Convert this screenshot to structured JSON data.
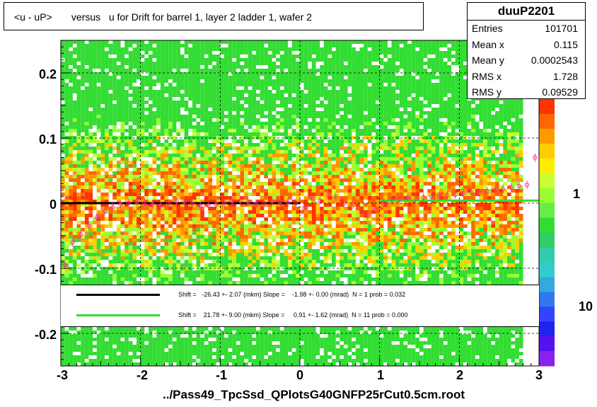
{
  "title": "<u - uP>       versus   u for Drift for barrel 1, layer 2 ladder 1, wafer 2",
  "footer": "../Pass49_TpcSsd_QPlotsG40GNFP25rCut0.5cm.root",
  "stats": {
    "name": "duuP2201",
    "rows": [
      {
        "label": "Entries",
        "value": "101701"
      },
      {
        "label": "Mean x",
        "value": "0.115"
      },
      {
        "label": "Mean y",
        "value": "0.0002543"
      },
      {
        "label": "RMS x",
        "value": "1.728"
      },
      {
        "label": "RMS y",
        "value": "0.09529"
      }
    ]
  },
  "fit_legend": [
    {
      "color": "#000000",
      "text": "Shift =   -26.43 +- 2.07 (mkm) Slope =    -1.98 +- 0.00 (mrad)  N = 1 prob = 0.032"
    },
    {
      "color": "#33dd33",
      "text": "Shift =    21.78 +- 9.00 (mkm) Slope =     0.91 +- 1.62 (mrad)  N = 11 prob = 0.000"
    }
  ],
  "chart_data": {
    "type": "heatmap",
    "title": "<u - uP>       versus   u for Drift for barrel 1, layer 2 ladder 1, wafer 2",
    "xlabel": "",
    "ylabel": "",
    "xlim": [
      -3,
      3
    ],
    "ylim": [
      -0.25,
      0.25
    ],
    "x_ticks": [
      "-3",
      "-2",
      "-1",
      "0",
      "1",
      "2",
      "3"
    ],
    "y_ticks": [
      "-0.2",
      "-0.1",
      "0",
      "0.1",
      "0.2"
    ],
    "z_scale": "log",
    "z_ticks": [
      "1",
      "10"
    ],
    "grid": true,
    "colors": {
      "low": "#33dd33",
      "mid": "#ffee00",
      "high": "#ff3300",
      "profile": "#ff3399",
      "fit1": "#000000",
      "fit2": "#33dd33"
    },
    "profile_points": {
      "x": [
        -2.95,
        -2.85,
        -2.75,
        -2.65,
        -2.55,
        -2.45,
        -2.35,
        -2.25,
        -2.15,
        -2.05,
        -1.95,
        -1.85,
        -1.75,
        -1.65,
        -1.55,
        -1.45,
        -1.35,
        -1.25,
        -1.15,
        -1.05,
        -0.95,
        -0.85,
        -0.75,
        -0.65,
        -0.55,
        -0.45,
        -0.35,
        -0.25,
        -0.15,
        -0.05,
        0.05,
        0.15,
        0.25,
        0.35,
        0.45,
        0.55,
        0.65,
        0.75,
        0.85,
        0.95,
        1.05,
        1.15,
        1.25,
        1.35,
        1.45,
        1.55,
        1.65,
        1.75,
        1.85,
        1.95,
        2.05,
        2.15,
        2.25,
        2.35,
        2.45,
        2.55,
        2.65,
        2.75,
        2.85,
        2.95
      ],
      "y": [
        -0.095,
        -0.06,
        -0.048,
        -0.035,
        -0.022,
        -0.012,
        -0.006,
        -0.002,
        0.0,
        0.002,
        0.001,
        -0.002,
        -0.004,
        0.0,
        0.003,
        0.002,
        -0.001,
        -0.005,
        -0.004,
        -0.002,
        0.001,
        0.003,
        0.004,
        0.002,
        -0.001,
        0.0,
        0.003,
        0.002,
        0.001,
        0.0,
        -0.008,
        0.008,
        0.004,
        0.012,
        0.01,
        0.0,
        -0.005,
        -0.008,
        -0.02,
        -0.01,
        0.0,
        0.004,
        0.006,
        0.008,
        0.007,
        0.009,
        0.01,
        0.011,
        0.012,
        0.013,
        0.015,
        0.017,
        0.016,
        0.018,
        0.02,
        0.022,
        0.024,
        0.026,
        0.028,
        0.07
      ]
    },
    "fit_lines": [
      {
        "name": "",
        "x": [
          -3.0,
          0.0
        ],
        "y": [
          0.0,
          0.0
        ]
      },
      {
        "name": "",
        "x": [
          1.0,
          3.0
        ],
        "y": [
          0.004,
          0.004
        ]
      }
    ]
  }
}
